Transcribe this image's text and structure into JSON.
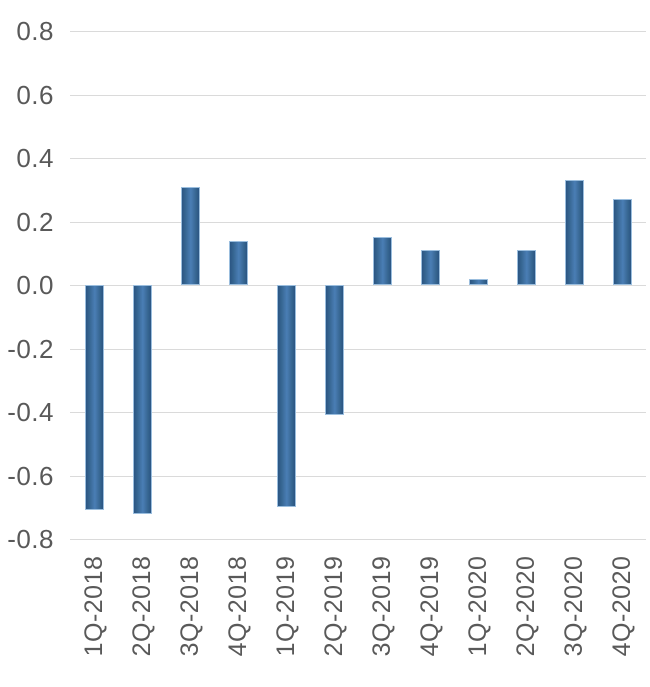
{
  "chart_data": {
    "type": "bar",
    "title": "",
    "xlabel": "",
    "ylabel": "",
    "categories": [
      "1Q-2018",
      "2Q-2018",
      "3Q-2018",
      "4Q-2018",
      "1Q-2019",
      "2Q-2019",
      "3Q-2019",
      "4Q-2019",
      "1Q-2020",
      "2Q-2020",
      "3Q-2020",
      "4Q-2020"
    ],
    "values": [
      -0.71,
      -0.72,
      0.31,
      0.14,
      -0.7,
      -0.41,
      0.15,
      0.11,
      0.02,
      0.11,
      0.33,
      0.27
    ],
    "ylim": [
      -0.8,
      0.8
    ],
    "ytick_step": 0.2,
    "ytick_labels": [
      "0.8",
      "0.6",
      "0.4",
      "0.2",
      "0.0",
      "-0.2",
      "-0.4",
      "-0.6",
      "-0.8"
    ],
    "grid": true,
    "legend": false,
    "x_label_rotation_deg": -90
  },
  "colors": {
    "bar_edge_dark": "#2B5583",
    "bar_center_light": "#4A7EB5",
    "bar_border": "#9BBEDE",
    "gridline": "#DADADA",
    "axis_label_text": "#595959",
    "background": "#FFFFFF"
  }
}
